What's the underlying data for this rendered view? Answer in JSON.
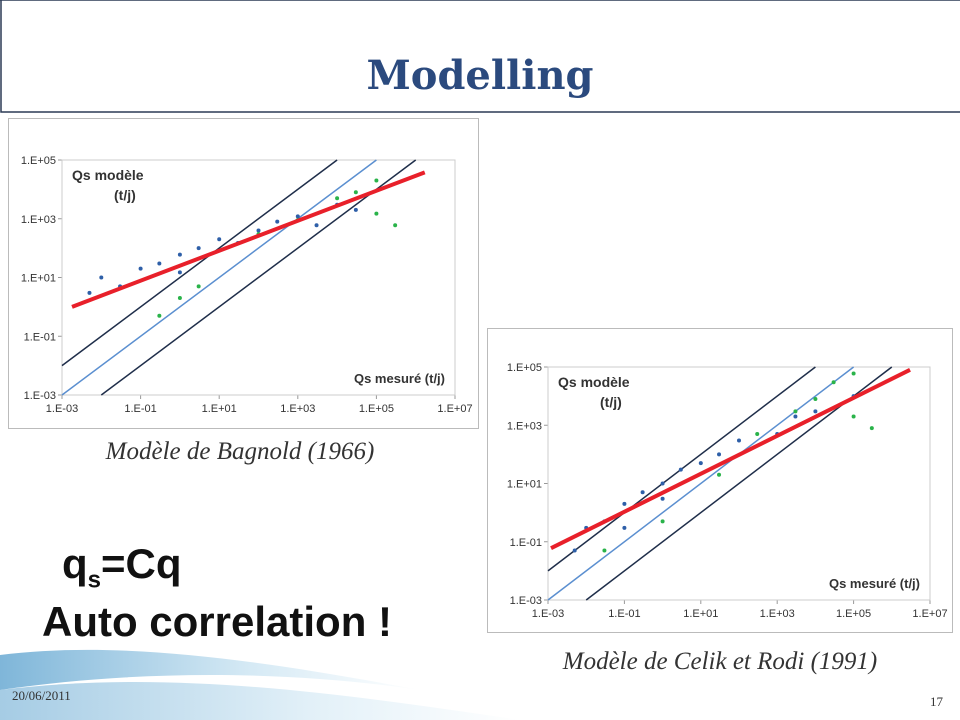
{
  "title": "Modelling",
  "chart_data": [
    {
      "type": "scatter",
      "caption": "Modèle de Bagnold (1966)",
      "ylabel_lines": [
        "Qs modèle",
        "(t/j)"
      ],
      "xlabel": "Qs mesuré (t/j)",
      "log_x": true,
      "log_y": true,
      "xlim": [
        0.001,
        10000000
      ],
      "ylim": [
        0.001,
        100000
      ],
      "xticks": [
        {
          "value": 0.001,
          "label": "1.E-03"
        },
        {
          "value": 0.1,
          "label": "1.E-01"
        },
        {
          "value": 10,
          "label": "1.E+01"
        },
        {
          "value": 1000,
          "label": "1.E+03"
        },
        {
          "value": 100000,
          "label": "1.E+05"
        },
        {
          "value": 10000000,
          "label": "1.E+07"
        }
      ],
      "yticks": [
        {
          "value": 0.001,
          "label": "1.E-03"
        },
        {
          "value": 0.1,
          "label": "1.E-01"
        },
        {
          "value": 10,
          "label": "1.E+01"
        },
        {
          "value": 1000,
          "label": "1.E+03"
        },
        {
          "value": 100000,
          "label": "1.E+05"
        }
      ],
      "series": [
        {
          "style": "line",
          "color": "#1f2e4a",
          "x": [
            0.001,
            10000
          ],
          "values": [
            0.01,
            100000
          ]
        },
        {
          "style": "line",
          "color": "#5b8fd0",
          "x": [
            0.001,
            100000
          ],
          "values": [
            0.001,
            100000
          ]
        },
        {
          "style": "line",
          "color": "#1f2e4a",
          "x": [
            0.01,
            1000000
          ],
          "values": [
            0.001,
            100000
          ]
        },
        {
          "style": "points",
          "color": "#2e5fa8",
          "x": [
            0.005,
            0.01,
            0.03,
            0.1,
            0.3,
            1,
            1,
            3,
            10,
            30,
            100,
            300,
            1000,
            3000,
            10000,
            30000
          ],
          "values": [
            3,
            10,
            5,
            20,
            30,
            60,
            15,
            100,
            200,
            150,
            400,
            800,
            1200,
            600,
            3000,
            2000
          ]
        },
        {
          "style": "points",
          "color": "#2ab34a",
          "x": [
            0.3,
            1,
            3,
            100,
            1000,
            10000,
            30000,
            100000,
            300000,
            100000
          ],
          "values": [
            0.5,
            2,
            5,
            300,
            900,
            5000,
            8000,
            1500,
            600,
            20000
          ]
        },
        {
          "style": "line",
          "color": "#e8202a",
          "x": [
            0.0018,
            1700000
          ],
          "values": [
            1,
            38000
          ]
        }
      ]
    },
    {
      "type": "scatter",
      "caption": "Modèle de Celik et Rodi (1991)",
      "ylabel_lines": [
        "Qs modèle",
        "(t/j)"
      ],
      "xlabel": "Qs mesuré (t/j)",
      "log_x": true,
      "log_y": true,
      "xlim": [
        0.001,
        10000000
      ],
      "ylim": [
        0.001,
        100000
      ],
      "xticks": [
        {
          "value": 0.001,
          "label": "1.E-03"
        },
        {
          "value": 0.1,
          "label": "1.E-01"
        },
        {
          "value": 10,
          "label": "1.E+01"
        },
        {
          "value": 1000,
          "label": "1.E+03"
        },
        {
          "value": 100000,
          "label": "1.E+05"
        },
        {
          "value": 10000000,
          "label": "1.E+07"
        }
      ],
      "yticks": [
        {
          "value": 0.001,
          "label": "1.E-03"
        },
        {
          "value": 0.1,
          "label": "1.E-01"
        },
        {
          "value": 10,
          "label": "1.E+01"
        },
        {
          "value": 1000,
          "label": "1.E+03"
        },
        {
          "value": 100000,
          "label": "1.E+05"
        }
      ],
      "series": [
        {
          "style": "line",
          "color": "#1f2e4a",
          "x": [
            0.001,
            10000
          ],
          "values": [
            0.01,
            100000
          ]
        },
        {
          "style": "line",
          "color": "#5b8fd0",
          "x": [
            0.001,
            100000
          ],
          "values": [
            0.001,
            100000
          ]
        },
        {
          "style": "line",
          "color": "#1f2e4a",
          "x": [
            0.01,
            1000000
          ],
          "values": [
            0.001,
            100000
          ]
        },
        {
          "style": "points",
          "color": "#2e5fa8",
          "x": [
            0.005,
            0.01,
            0.03,
            0.1,
            0.1,
            0.3,
            1,
            1,
            3,
            10,
            30,
            100,
            1000,
            3000,
            10000,
            100000
          ],
          "values": [
            0.05,
            0.3,
            0.5,
            2,
            0.3,
            5,
            10,
            3,
            30,
            50,
            100,
            300,
            500,
            2000,
            3000,
            10000
          ]
        },
        {
          "style": "points",
          "color": "#2ab34a",
          "x": [
            0.03,
            1,
            30,
            300,
            3000,
            30000,
            100000,
            300000,
            100000,
            10000
          ],
          "values": [
            0.05,
            0.5,
            20,
            500,
            3000,
            30000,
            60000,
            800,
            2000,
            8000
          ]
        },
        {
          "style": "line",
          "color": "#e8202a",
          "x": [
            0.0012,
            3000000
          ],
          "values": [
            0.06,
            80000
          ]
        }
      ]
    }
  ],
  "formula": {
    "base": "q",
    "sub": "s",
    "rest": "=Cq"
  },
  "note": "Auto correlation !",
  "footer": {
    "date": "20/06/2011",
    "page": "17"
  }
}
